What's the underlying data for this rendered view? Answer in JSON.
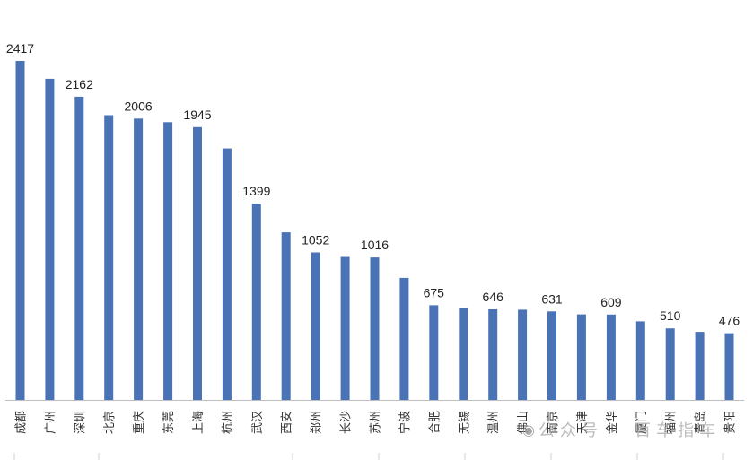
{
  "chart_data": {
    "type": "bar",
    "categories": [
      "成都",
      "广州",
      "深圳",
      "北京",
      "重庆",
      "东莞",
      "上海",
      "杭州",
      "武汉",
      "西安",
      "郑州",
      "长沙",
      "苏州",
      "宁波",
      "合肥",
      "无锡",
      "温州",
      "佛山",
      "南京",
      "天津",
      "金华",
      "厦门",
      "福州",
      "青岛",
      "贵阳"
    ],
    "values": [
      2417,
      2290,
      2162,
      2030,
      2006,
      1980,
      1945,
      1793,
      1399,
      1195,
      1052,
      1020,
      1016,
      870,
      675,
      653,
      646,
      643,
      631,
      610,
      609,
      560,
      510,
      485,
      476
    ],
    "labels": [
      "2417",
      "",
      "2162",
      "",
      "2006",
      "",
      "1945",
      "",
      "1399",
      "",
      "1052",
      "",
      "1016",
      "",
      "675",
      "",
      "646",
      "",
      "631",
      "",
      "609",
      "",
      "510",
      "",
      "476"
    ],
    "ylim": [
      0,
      2500
    ],
    "bar_color": "#4a73b5",
    "grid": false,
    "legend": "none"
  },
  "watermark": {
    "icon": "wechat-icon",
    "text": "公众号 · 百车指车"
  }
}
